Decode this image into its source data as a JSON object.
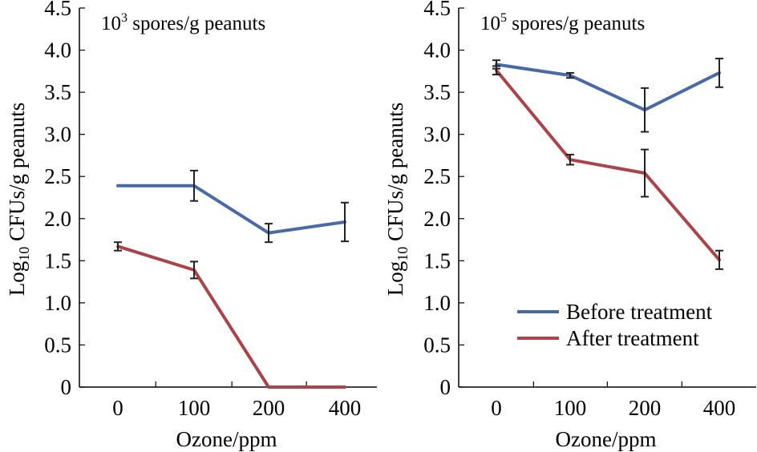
{
  "chart_data": [
    {
      "type": "line",
      "title_base": "10",
      "title_sup": "3",
      "title_rest": " spores/g peanuts",
      "categories": [
        "0",
        "100",
        "200",
        "400"
      ],
      "xlabel": "Ozone/ppm",
      "ylabel_pre": "Log",
      "ylabel_sub": "10",
      "ylabel_post": " CFUs/g peanuts",
      "ylim": [
        0,
        4.5
      ],
      "yticks": [
        "0",
        "0.5",
        "1.0",
        "1.5",
        "2.0",
        "2.5",
        "3.0",
        "3.5",
        "4.0",
        "4.5"
      ],
      "series": [
        {
          "name": "Before treatment",
          "color": "#4a6aa5",
          "values": [
            2.39,
            2.39,
            1.83,
            1.96
          ],
          "err": [
            0,
            0.18,
            0.11,
            0.23
          ]
        },
        {
          "name": "After treatment",
          "color": "#a8444a",
          "values": [
            1.67,
            1.39,
            0,
            0
          ],
          "err": [
            0.05,
            0.1,
            0,
            0
          ]
        }
      ]
    },
    {
      "type": "line",
      "title_base": "10",
      "title_sup": "5",
      "title_rest": " spores/g peanuts",
      "categories": [
        "0",
        "100",
        "200",
        "400"
      ],
      "xlabel": "Ozone/ppm",
      "ylabel_pre": "Log",
      "ylabel_sub": "10",
      "ylabel_post": " CFUs/g peanuts",
      "ylim": [
        0,
        4.5
      ],
      "yticks": [
        "0",
        "0.5",
        "1.0",
        "1.5",
        "2.0",
        "2.5",
        "3.0",
        "3.5",
        "4.0",
        "4.5"
      ],
      "legend_position": "bottom-right",
      "series": [
        {
          "name": "Before treatment",
          "color": "#4a6aa5",
          "values": [
            3.83,
            3.7,
            3.29,
            3.73
          ],
          "err": [
            0.05,
            0.03,
            0.26,
            0.17
          ]
        },
        {
          "name": "After treatment",
          "color": "#a8444a",
          "values": [
            3.76,
            2.7,
            2.54,
            1.51
          ],
          "err": [
            0.05,
            0.06,
            0.28,
            0.11
          ]
        }
      ]
    }
  ]
}
